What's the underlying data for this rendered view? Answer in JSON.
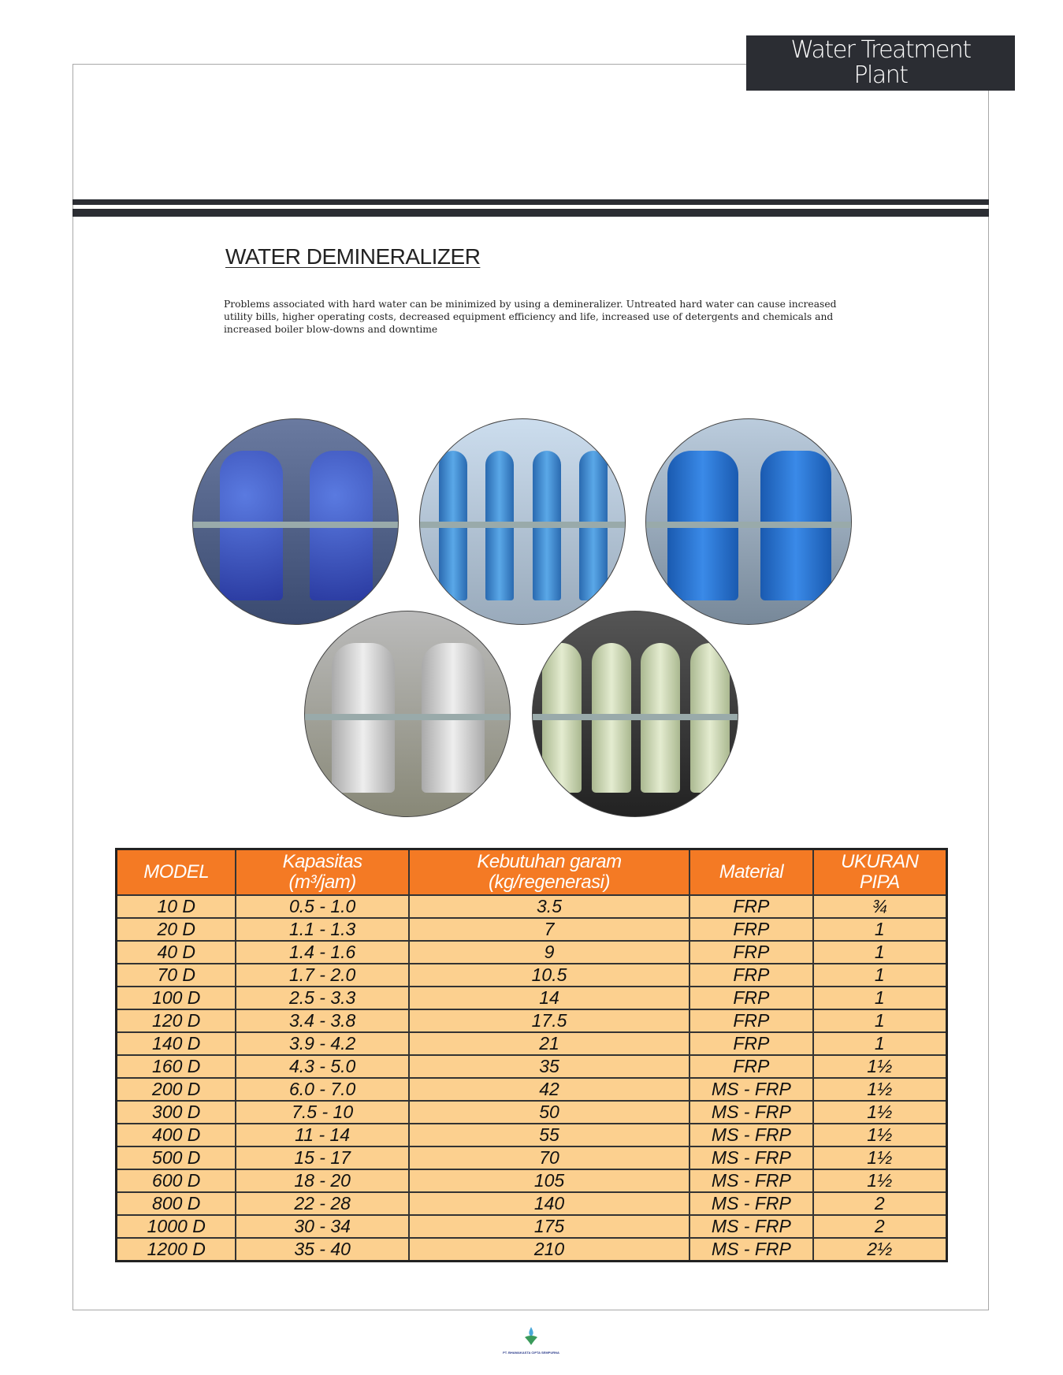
{
  "header": {
    "title_line1": "Water Treatment",
    "title_line2": "Plant"
  },
  "section": {
    "heading": "WATER DEMINERALIZER",
    "description": "Problems associated with hard water can be minimized by using a demineralizer. Untreated hard water can cause increased utility bills, higher operating costs, decreased equipment efficiency and life, increased use of detergents and chemicals and increased boiler blow-downs and downtime"
  },
  "photos": [
    {
      "subject": "blue demineralizer tanks with control panel"
    },
    {
      "subject": "blue column demineralizer units"
    },
    {
      "subject": "blue tanks with grey pipework"
    },
    {
      "subject": "stainless steel vessels"
    },
    {
      "subject": "FRP green vessels"
    }
  ],
  "table": {
    "headers": [
      [
        "MODEL",
        ""
      ],
      [
        "Kapasitas",
        "(m³/jam)"
      ],
      [
        "Kebutuhan garam",
        "(kg/regenerasi)"
      ],
      [
        "Material",
        ""
      ],
      [
        "UKURAN",
        "PIPA"
      ]
    ],
    "rows": [
      [
        "10 D",
        "0.5 - 1.0",
        "3.5",
        "FRP",
        "¾"
      ],
      [
        "20 D",
        "1.1 - 1.3",
        "7",
        "FRP",
        "1"
      ],
      [
        "40 D",
        "1.4 - 1.6",
        "9",
        "FRP",
        "1"
      ],
      [
        "70 D",
        "1.7 - 2.0",
        "10.5",
        "FRP",
        "1"
      ],
      [
        "100 D",
        "2.5 - 3.3",
        "14",
        "FRP",
        "1"
      ],
      [
        "120 D",
        "3.4 - 3.8",
        "17.5",
        "FRP",
        "1"
      ],
      [
        "140 D",
        "3.9 - 4.2",
        "21",
        "FRP",
        "1"
      ],
      [
        "160 D",
        "4.3 - 5.0",
        "35",
        "FRP",
        "1½"
      ],
      [
        "200 D",
        "6.0 - 7.0",
        "42",
        "MS - FRP",
        "1½"
      ],
      [
        "300 D",
        "7.5 - 10",
        "50",
        "MS - FRP",
        "1½"
      ],
      [
        "400 D",
        "11 - 14",
        "55",
        "MS - FRP",
        "1½"
      ],
      [
        "500 D",
        "15 - 17",
        "70",
        "MS - FRP",
        "1½"
      ],
      [
        "600 D",
        "18 - 20",
        "105",
        "MS - FRP",
        "1½"
      ],
      [
        "800 D",
        "22 - 28",
        "140",
        "MS - FRP",
        "2"
      ],
      [
        "1000 D",
        "30 - 34",
        "175",
        "MS - FRP",
        "2"
      ],
      [
        "1200 D",
        "35 - 40",
        "210",
        "MS - FRP",
        "2½"
      ]
    ]
  },
  "colors": {
    "header_bg": "#f47a24",
    "row_bg": "#fcd08f",
    "dark": "#2b2d33"
  },
  "footer": {
    "company": "PT. BHAMAKASTA CIPTA SEMPURNA"
  }
}
